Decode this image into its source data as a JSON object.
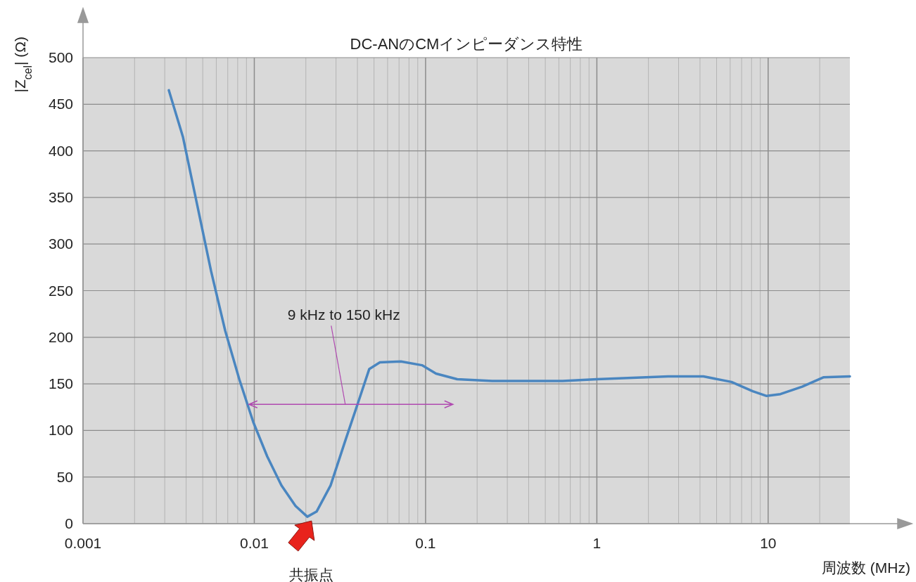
{
  "chart_data": {
    "type": "line",
    "title": "DC-ANのCMインピーダンス特性",
    "xlabel": "周波数 (MHz)",
    "ylabel": "|Z$_{cel}$| (Ω)",
    "log": "x",
    "grid": true,
    "marker": "none",
    "line_style": "solid",
    "xlim": [
      0.001,
      30
    ],
    "xticks": [
      0.001,
      0.01,
      0.1,
      1,
      10
    ],
    "ylim": [
      0,
      500
    ],
    "yticks": [
      0,
      50,
      100,
      150,
      200,
      250,
      300,
      350,
      400,
      450,
      500
    ],
    "series": [
      {
        "color": "#4a86c0",
        "x": [
          0.00317,
          0.00383,
          0.00463,
          0.00559,
          0.00676,
          0.00817,
          0.00986,
          0.0119,
          0.0144,
          0.0174,
          0.0204,
          0.0231,
          0.0279,
          0.0337,
          0.0407,
          0.0469,
          0.0541,
          0.0718,
          0.0953,
          0.115,
          0.153,
          0.245,
          0.631,
          1,
          2.61,
          4.19,
          6.11,
          8.13,
          9.8,
          11.8,
          15.8,
          21,
          30
        ],
        "values": [
          465,
          415,
          343,
          271,
          207,
          155,
          109,
          72,
          41,
          19,
          7.5,
          13,
          41,
          87,
          132,
          166,
          173,
          174,
          170,
          161,
          155,
          153,
          153,
          155,
          158,
          158,
          152,
          142,
          137,
          139,
          147,
          157,
          158
        ]
      }
    ],
    "annotations": [
      "9 kHz to 150 kHz",
      "共振点"
    ]
  }
}
